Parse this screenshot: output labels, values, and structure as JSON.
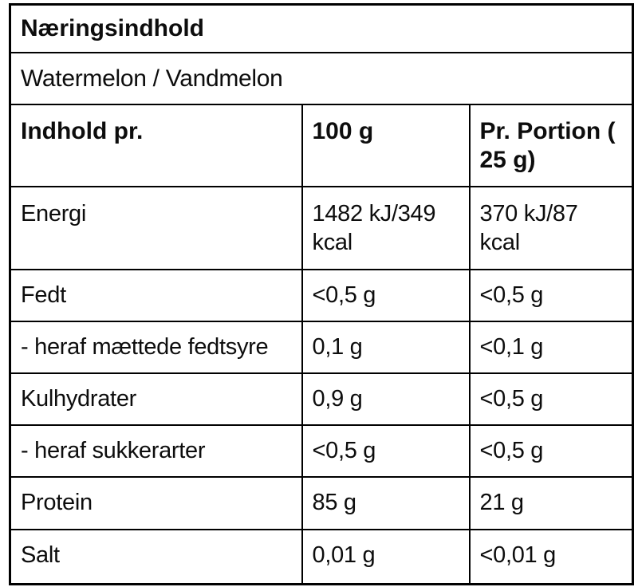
{
  "table": {
    "title": "Næringsindhold",
    "subtitle": "Watermelon / Vandmelon",
    "columns": {
      "label": "Indhold pr.",
      "per_100g": "100 g",
      "per_portion": "Pr. Portion ( 25 g)"
    },
    "rows": [
      {
        "label": "Energi",
        "per_100g": "1482 kJ/349 kcal",
        "per_portion": "370 kJ/87 kcal"
      },
      {
        "label": "Fedt",
        "per_100g": "<0,5 g",
        "per_portion": "<0,5 g"
      },
      {
        "label": "- heraf mættede fedtsyre",
        "per_100g": "0,1 g",
        "per_portion": "<0,1 g"
      },
      {
        "label": "Kulhydrater",
        "per_100g": "0,9 g",
        "per_portion": "<0,5 g"
      },
      {
        "label": "- heraf sukkerarter",
        "per_100g": "<0,5 g",
        "per_portion": "<0,5 g"
      },
      {
        "label": "Protein",
        "per_100g": "85 g",
        "per_portion": "21 g"
      },
      {
        "label": "Salt",
        "per_100g": "0,01 g",
        "per_portion": "<0,01 g"
      }
    ],
    "colors": {
      "border": "#000000",
      "text": "#0d0d0d",
      "background": "#ffffff"
    }
  }
}
